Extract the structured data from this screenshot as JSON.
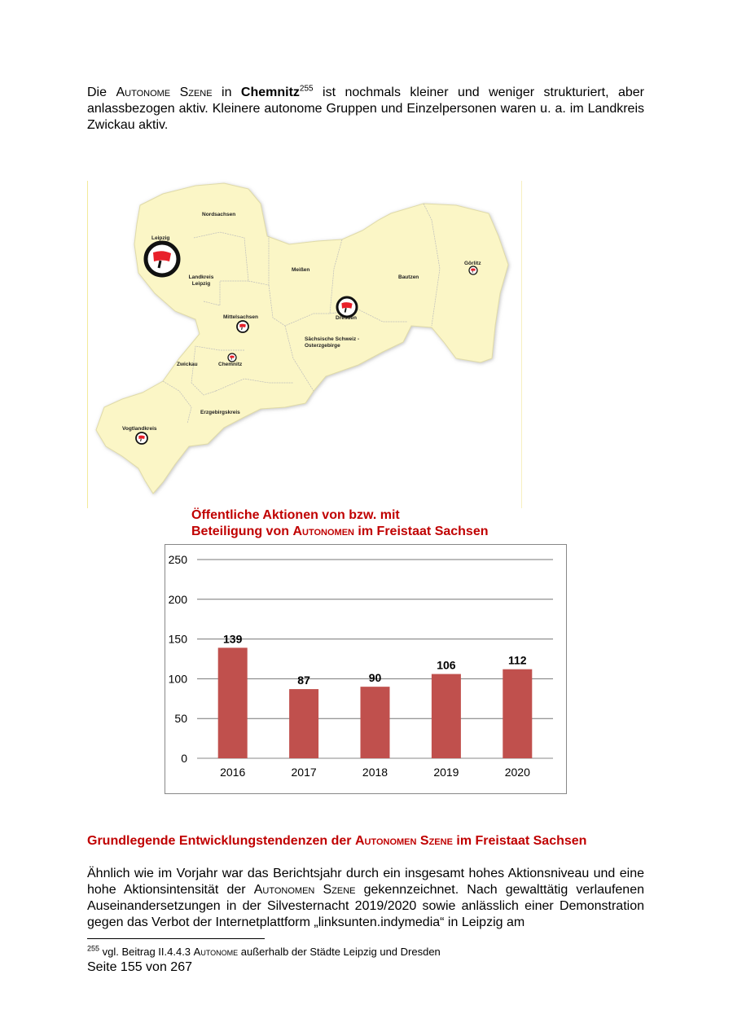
{
  "intro": {
    "p1": "Die ",
    "p2": "Autonome Szene",
    "p3": " in ",
    "p4": "Chemnitz",
    "p5": "255",
    "p6": " ist nochmals kleiner und weniger strukturiert, aber anlassbezogen aktiv. Kleinere autonome Gruppen und Einzelpersonen waren u. a. im Landkreis Zwickau aktiv."
  },
  "map": {
    "fill_color": "#fbf6c6",
    "icon": "antifa-flag-icon",
    "labels": {
      "nordsachsen": "Nordsachsen",
      "leipzig": "Leipzig",
      "landkreis_leipzig": "Landkreis Leipzig",
      "meissen": "Meißen",
      "bautzen": "Bautzen",
      "goerlitz": "Görlitz",
      "dresden": "Dresden",
      "mittelsachsen": "Mittelsachsen",
      "saechsische_schweiz": "Sächsische Schweiz - Osterzgebirge",
      "zwickau": "Zwickau",
      "chemnitz": "Chemnitz",
      "erzgebirgskreis": "Erzgebirgskreis",
      "vogtlandkreis": "Vogtlandkreis"
    }
  },
  "chart_data": {
    "type": "bar",
    "title_line1": "Öffentliche Aktionen von bzw. mit",
    "title_line2a": "Beteiligung von ",
    "title_line2b": "Autonomen",
    "title_line2c": " im Freistaat Sachsen",
    "categories": [
      "2016",
      "2017",
      "2018",
      "2019",
      "2020"
    ],
    "values": [
      139,
      87,
      90,
      106,
      112
    ],
    "ylim": [
      0,
      250
    ],
    "yticks": [
      "0",
      "50",
      "100",
      "150",
      "200",
      "250"
    ],
    "grid": true,
    "bar_color": "#c0504d",
    "title_color": "#c00000"
  },
  "section": {
    "h1": "Grundlegende Entwicklungstendenzen der ",
    "h2": "Autonomen Szene",
    "h3": " im Freistaat Sachsen",
    "b1": "Ähnlich wie im Vorjahr war das Berichtsjahr durch ein insgesamt hohes Aktionsniveau und eine hohe Aktionsintensität der ",
    "b2": "Autonomen Szene",
    "b3": " gekennzeichnet. Nach gewalttätig verlaufenen Auseinandersetzungen in der Silvesternacht 2019/2020 sowie anlässlich einer Demonstration gegen das Verbot der Internetplattform „linksunten.indymedia“ in Leipzig am"
  },
  "footnote": {
    "num": "255",
    "t1": " vgl. Beitrag II.4.4.3 ",
    "t2": "Autonome",
    "t3": " außerhalb der Städte Leipzig und Dresden"
  },
  "page_number": "Seite 155 von 267"
}
